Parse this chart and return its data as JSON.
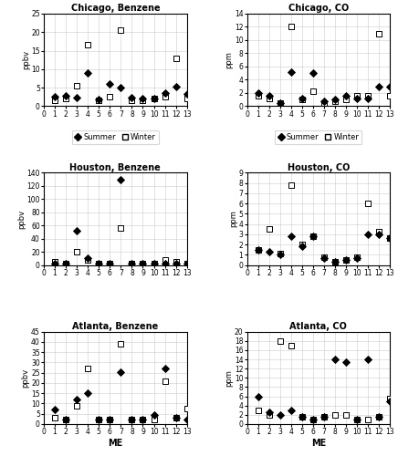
{
  "panels": [
    {
      "title": "Chicago, Benzene",
      "ylabel": "ppbv",
      "ylim": [
        0,
        25
      ],
      "yticks": [
        0,
        5,
        10,
        15,
        20,
        25
      ],
      "summer": [
        null,
        2.5,
        2.8,
        2.2,
        9.0,
        1.8,
        6.0,
        5.0,
        2.2,
        2.0,
        2.0,
        3.5,
        5.2,
        3.2
      ],
      "winter": [
        null,
        1.5,
        2.0,
        5.5,
        16.5,
        1.5,
        2.5,
        20.5,
        1.5,
        1.5,
        2.0,
        2.5,
        13.0,
        2.0
      ],
      "show_legend": true,
      "row": 0,
      "col": 0
    },
    {
      "title": "Chicago, CO",
      "ylabel": "ppm",
      "ylim": [
        0,
        14
      ],
      "yticks": [
        0,
        2,
        4,
        6,
        8,
        10,
        12,
        14
      ],
      "summer": [
        null,
        2.0,
        1.5,
        0.5,
        5.2,
        1.2,
        5.0,
        0.8,
        1.0,
        1.5,
        1.2,
        1.2,
        3.0,
        3.0
      ],
      "winter": [
        null,
        1.5,
        1.2,
        0.5,
        12.0,
        1.0,
        2.2,
        0.5,
        0.8,
        1.0,
        1.5,
        1.5,
        11.0,
        1.5
      ],
      "show_legend": true,
      "row": 0,
      "col": 1
    },
    {
      "title": "Houston, Benzene",
      "ylabel": "ppbv",
      "ylim": [
        0,
        140
      ],
      "yticks": [
        0,
        20,
        40,
        60,
        80,
        100,
        120,
        140
      ],
      "summer": [
        null,
        2.0,
        2.0,
        52.0,
        10.0,
        2.0,
        2.0,
        130.0,
        2.0,
        2.0,
        2.0,
        2.0,
        2.0,
        2.0
      ],
      "winter": [
        null,
        5.0,
        3.0,
        20.0,
        8.0,
        2.0,
        2.0,
        56.0,
        2.0,
        3.0,
        3.0,
        8.0,
        5.0,
        3.0
      ],
      "show_legend": false,
      "row": 1,
      "col": 0
    },
    {
      "title": "Houston, CO",
      "ylabel": "ppm",
      "ylim": [
        0,
        9
      ],
      "yticks": [
        0,
        1,
        2,
        3,
        4,
        5,
        6,
        7,
        8,
        9
      ],
      "summer": [
        null,
        1.5,
        1.3,
        1.0,
        2.8,
        1.8,
        2.8,
        0.7,
        0.3,
        0.5,
        0.7,
        3.0,
        3.0,
        2.6
      ],
      "winter": [
        null,
        1.5,
        3.5,
        1.1,
        7.8,
        2.0,
        2.8,
        0.8,
        0.3,
        0.5,
        0.8,
        6.0,
        3.3,
        2.6
      ],
      "show_legend": false,
      "row": 1,
      "col": 1
    },
    {
      "title": "Atlanta, Benzene",
      "ylabel": "ppbv",
      "ylim": [
        0,
        45
      ],
      "yticks": [
        0,
        5,
        10,
        15,
        20,
        25,
        30,
        35,
        40,
        45
      ],
      "summer": [
        null,
        7.0,
        2.0,
        12.0,
        15.0,
        2.0,
        2.0,
        25.5,
        2.0,
        2.0,
        4.5,
        27.0,
        3.0,
        2.0
      ],
      "winter": [
        null,
        3.0,
        2.0,
        9.0,
        27.0,
        2.0,
        2.0,
        39.0,
        2.0,
        2.0,
        2.0,
        21.0,
        3.0,
        7.5
      ],
      "show_legend": false,
      "row": 2,
      "col": 0,
      "xlabel": "ME"
    },
    {
      "title": "Atlanta, CO",
      "ylabel": "ppm",
      "ylim": [
        0,
        20
      ],
      "yticks": [
        0,
        2,
        4,
        6,
        8,
        10,
        12,
        14,
        16,
        18,
        20
      ],
      "summer": [
        null,
        6.0,
        2.5,
        2.0,
        3.0,
        1.5,
        1.0,
        1.5,
        14.0,
        13.5,
        1.0,
        14.0,
        1.5,
        5.0
      ],
      "winter": [
        null,
        3.0,
        2.0,
        18.0,
        17.0,
        1.5,
        1.0,
        1.5,
        2.0,
        2.0,
        1.0,
        1.0,
        1.5,
        5.5
      ],
      "show_legend": false,
      "row": 2,
      "col": 1,
      "xlabel": "ME"
    }
  ],
  "x_positions": [
    1,
    2,
    3,
    4,
    5,
    6,
    7,
    8,
    9,
    10,
    11,
    12,
    13
  ],
  "xlim": [
    0,
    13
  ],
  "xticks": [
    0,
    1,
    2,
    3,
    4,
    5,
    6,
    7,
    8,
    9,
    10,
    11,
    12,
    13
  ],
  "summer_marker": "D",
  "winter_marker": "s",
  "summer_color": "#000000",
  "winter_facecolor": "#ffffff",
  "winter_edgecolor": "#000000",
  "marker_size": 4,
  "legend_summer_label": "Summer",
  "legend_winter_label": "Winter"
}
